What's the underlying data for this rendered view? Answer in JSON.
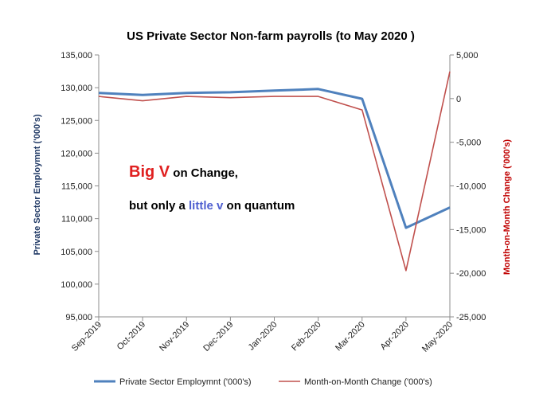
{
  "chart_data": {
    "type": "line",
    "title": "US Private Sector Non-farm payrolls (to May 2020 )",
    "categories": [
      "Sep-2019",
      "Oct-2019",
      "Nov-2019",
      "Dec-2019",
      "Jan-2020",
      "Feb-2020",
      "Mar-2020",
      "Apr-2020",
      "May-2020"
    ],
    "series": [
      {
        "name": "Private Sector Employmnt ('000's)",
        "axis": "left",
        "color": "#4f81bd",
        "values": [
          129200,
          128900,
          129200,
          129300,
          129550,
          129800,
          128300,
          108600,
          111700
        ]
      },
      {
        "name": "Month-on-Month Change ('000's)",
        "axis": "right",
        "color": "#c0504d",
        "values": [
          250,
          -250,
          250,
          100,
          250,
          250,
          -1300,
          -19700,
          3100
        ]
      }
    ],
    "y_left": {
      "label": "Private Sector Employmnt ('000's)",
      "min": 95000,
      "max": 135000,
      "step": 5000,
      "ticks": [
        "95,000",
        "100,000",
        "105,000",
        "110,000",
        "115,000",
        "120,000",
        "125,000",
        "130,000",
        "135,000"
      ],
      "color": "#1f3864"
    },
    "y_right": {
      "label": "Month-on-Month Change ('000's)",
      "min": -25000,
      "max": 5000,
      "step": 5000,
      "ticks": [
        "-25,000",
        "-20,000",
        "-15,000",
        "-10,000",
        "-5,000",
        "0",
        "5,000"
      ],
      "color": "#c00000"
    },
    "annotation": {
      "line1": [
        {
          "text": "Big V",
          "color": "#e02020",
          "size": "large"
        },
        {
          "text": " on Change,",
          "color": "#000000",
          "size": "normal"
        }
      ],
      "line2": [
        {
          "text": "but only a ",
          "color": "#000000",
          "size": "normal"
        },
        {
          "text": "little v",
          "color": "#4f5fd0",
          "size": "normal"
        },
        {
          "text": " on quantum",
          "color": "#000000",
          "size": "normal"
        }
      ]
    },
    "legend_position": "bottom"
  }
}
